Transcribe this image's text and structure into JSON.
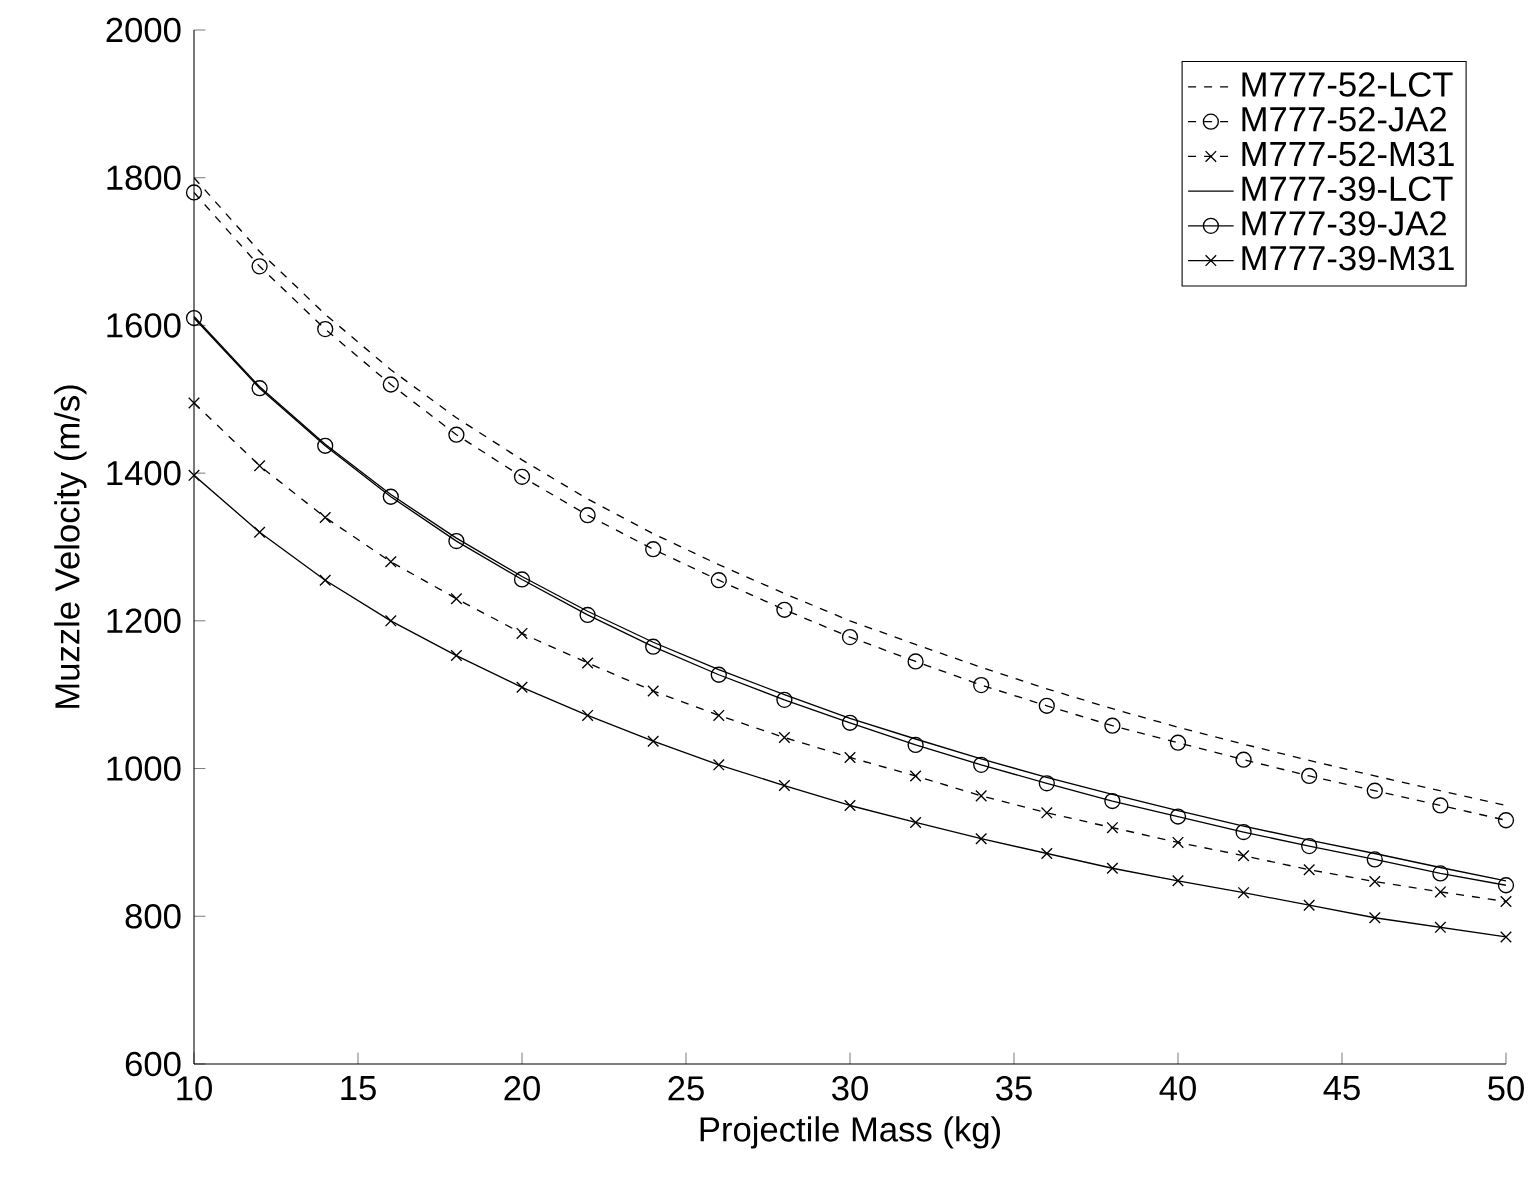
{
  "chart_data": {
    "type": "line",
    "xlabel": "Projectile Mass (kg)",
    "ylabel": "Muzzle Velocity (m/s)",
    "x": [
      10,
      12,
      14,
      16,
      18,
      20,
      22,
      24,
      26,
      28,
      30,
      32,
      34,
      36,
      38,
      40,
      42,
      44,
      46,
      48,
      50
    ],
    "series": [
      {
        "name": "M777-52-LCT",
        "color": "#000000",
        "line_style": "dashed",
        "marker": "none",
        "values": [
          1800,
          1700,
          1615,
          1540,
          1475,
          1418,
          1365,
          1318,
          1276,
          1237,
          1200,
          1168,
          1137,
          1108,
          1081,
          1056,
          1033,
          1011,
          990,
          970,
          950
        ]
      },
      {
        "name": "M777-52-JA2",
        "color": "#000000",
        "line_style": "dashed",
        "marker": "circle",
        "values": [
          1780,
          1680,
          1595,
          1520,
          1452,
          1395,
          1343,
          1297,
          1255,
          1215,
          1178,
          1145,
          1113,
          1085,
          1058,
          1035,
          1012,
          990,
          970,
          950,
          930
        ]
      },
      {
        "name": "M777-52-M31",
        "color": "#000000",
        "line_style": "dashed",
        "marker": "cross",
        "values": [
          1495,
          1410,
          1340,
          1280,
          1230,
          1183,
          1143,
          1105,
          1072,
          1042,
          1015,
          990,
          963,
          940,
          920,
          900,
          882,
          863,
          847,
          833,
          820
        ]
      },
      {
        "name": "M777-39-LCT",
        "color": "#000000",
        "line_style": "solid",
        "marker": "none",
        "values": [
          1612,
          1517,
          1439,
          1371,
          1312,
          1260,
          1213,
          1171,
          1134,
          1100,
          1068,
          1040,
          1013,
          988,
          965,
          943,
          922,
          903,
          885,
          866,
          848
        ]
      },
      {
        "name": "M777-39-JA2",
        "color": "#000000",
        "line_style": "solid",
        "marker": "circle",
        "values": [
          1610,
          1515,
          1437,
          1368,
          1308,
          1256,
          1208,
          1165,
          1127,
          1093,
          1062,
          1032,
          1005,
          980,
          956,
          935,
          914,
          895,
          877,
          858,
          842
        ]
      },
      {
        "name": "M777-39-M31",
        "color": "#000000",
        "line_style": "solid",
        "marker": "cross",
        "values": [
          1397,
          1320,
          1255,
          1200,
          1153,
          1110,
          1072,
          1037,
          1005,
          977,
          950,
          927,
          905,
          885,
          865,
          848,
          832,
          815,
          798,
          785,
          772
        ]
      }
    ],
    "xlim": [
      10,
      50
    ],
    "ylim": [
      600,
      2000
    ],
    "xticks": [
      10,
      15,
      20,
      25,
      30,
      35,
      40,
      45,
      50
    ],
    "yticks": [
      600,
      800,
      1000,
      1200,
      1400,
      1600,
      1800,
      2000
    ],
    "legend": "top right",
    "grid": false
  }
}
